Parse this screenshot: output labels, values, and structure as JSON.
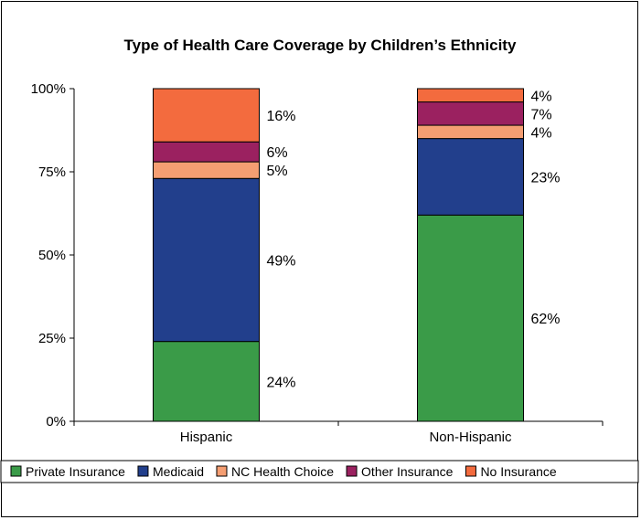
{
  "chart_data": {
    "type": "bar",
    "stacked": true,
    "title": "Type of Health Care Coverage by Children’s Ethnicity",
    "xlabel": "",
    "ylabel": "",
    "ylim": [
      0,
      100
    ],
    "yticks": [
      "0%",
      "25%",
      "50%",
      "75%",
      "100%"
    ],
    "categories": [
      "Hispanic",
      "Non-Hispanic"
    ],
    "series": [
      {
        "name": "Private Insurance",
        "color": "#3a9b48",
        "values": [
          24,
          62
        ],
        "labels": [
          "24%",
          "62%"
        ]
      },
      {
        "name": "Medicaid",
        "color": "#223f8c",
        "values": [
          49,
          23
        ],
        "labels": [
          "49%",
          "23%"
        ]
      },
      {
        "name": "NC Health Choice",
        "color": "#f59e72",
        "values": [
          5,
          4
        ],
        "labels": [
          "5%",
          "4%"
        ]
      },
      {
        "name": "Other Insurance",
        "color": "#9b2160",
        "values": [
          6,
          7
        ],
        "labels": [
          "6%",
          "7%"
        ]
      },
      {
        "name": "No Insurance",
        "color": "#f36b3e",
        "values": [
          16,
          4
        ],
        "labels": [
          "16%",
          "4%"
        ]
      }
    ],
    "legend_position": "bottom",
    "grid": false
  }
}
